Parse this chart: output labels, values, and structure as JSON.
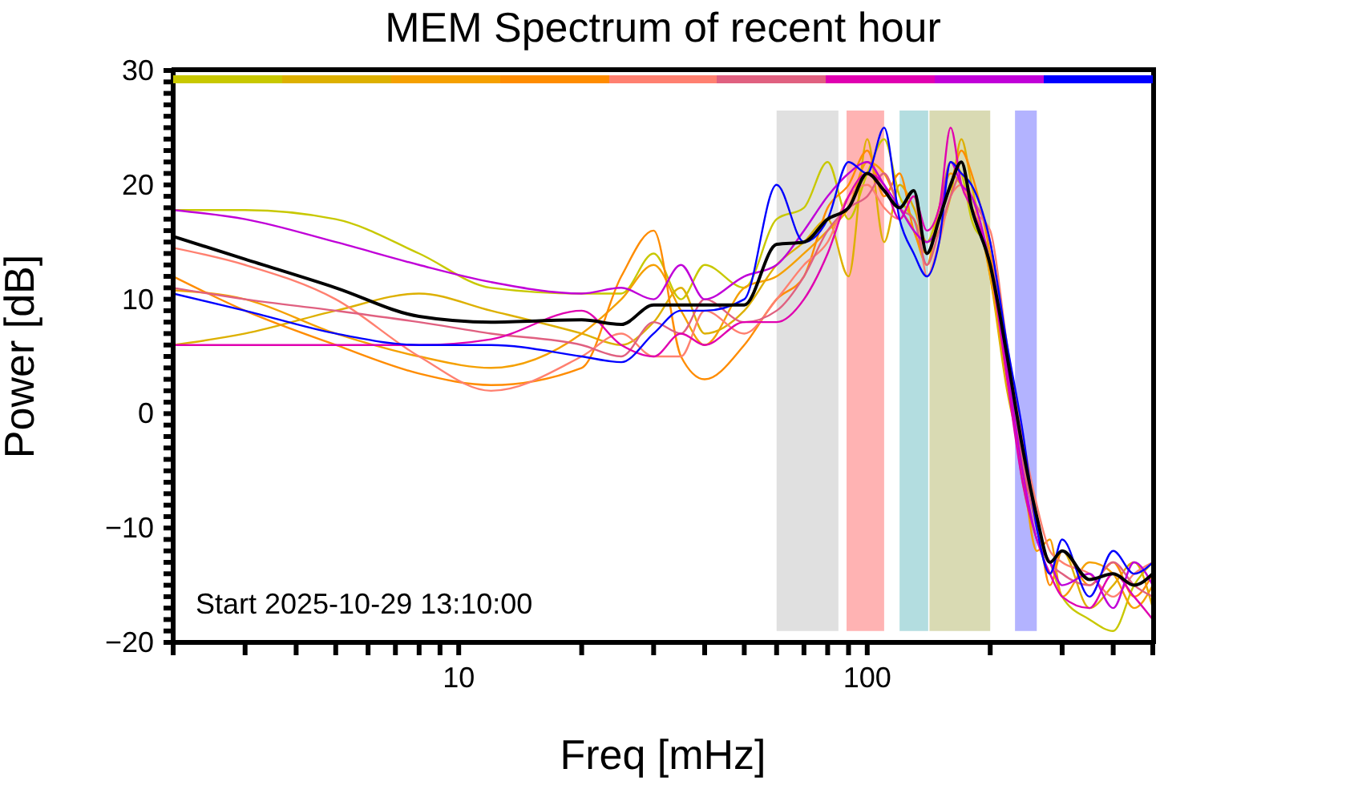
{
  "chart_data": {
    "type": "line",
    "title": "MEM Spectrum of recent hour",
    "xlabel": "Freq [mHz]",
    "ylabel": "Power [dB]",
    "log": "x",
    "grid": false,
    "legend": false,
    "marker": "none",
    "line_style": "solid",
    "xlim": [
      2,
      500
    ],
    "ylim": [
      -20,
      30
    ],
    "xticks": [
      {
        "value": 2,
        "label": null
      },
      {
        "value": 3,
        "label": null
      },
      {
        "value": 4,
        "label": null
      },
      {
        "value": 5,
        "label": null
      },
      {
        "value": 6,
        "label": null
      },
      {
        "value": 7,
        "label": null
      },
      {
        "value": 8,
        "label": null
      },
      {
        "value": 9,
        "label": null
      },
      10,
      {
        "value": 20,
        "label": null
      },
      {
        "value": 30,
        "label": null
      },
      {
        "value": 40,
        "label": null
      },
      {
        "value": 50,
        "label": null
      },
      {
        "value": 60,
        "label": null
      },
      {
        "value": 70,
        "label": null
      },
      {
        "value": 80,
        "label": null
      },
      {
        "value": 90,
        "label": null
      },
      100,
      {
        "value": 200,
        "label": null
      },
      {
        "value": 300,
        "label": null
      },
      {
        "value": 400,
        "label": null
      },
      {
        "value": 500,
        "label": null
      }
    ],
    "yticks": [
      -20,
      {
        "value": -19,
        "label": null
      },
      {
        "value": -18,
        "label": null
      },
      {
        "value": -17,
        "label": null
      },
      {
        "value": -16,
        "label": null
      },
      {
        "value": -15,
        "label": null
      },
      {
        "value": -14,
        "label": null
      },
      {
        "value": -13,
        "label": null
      },
      {
        "value": -12,
        "label": null
      },
      {
        "value": -11,
        "label": null
      },
      -10,
      {
        "value": -9,
        "label": null
      },
      {
        "value": -8,
        "label": null
      },
      {
        "value": -7,
        "label": null
      },
      {
        "value": -6,
        "label": null
      },
      {
        "value": -5,
        "label": null
      },
      {
        "value": -4,
        "label": null
      },
      {
        "value": -3,
        "label": null
      },
      {
        "value": -2,
        "label": null
      },
      {
        "value": -1,
        "label": null
      },
      0,
      {
        "value": 1,
        "label": null
      },
      {
        "value": 2,
        "label": null
      },
      {
        "value": 3,
        "label": null
      },
      {
        "value": 4,
        "label": null
      },
      {
        "value": 5,
        "label": null
      },
      {
        "value": 6,
        "label": null
      },
      {
        "value": 7,
        "label": null
      },
      {
        "value": 8,
        "label": null
      },
      {
        "value": 9,
        "label": null
      },
      10,
      {
        "value": 11,
        "label": null
      },
      {
        "value": 12,
        "label": null
      },
      {
        "value": 13,
        "label": null
      },
      {
        "value": 14,
        "label": null
      },
      {
        "value": 15,
        "label": null
      },
      {
        "value": 16,
        "label": null
      },
      {
        "value": 17,
        "label": null
      },
      {
        "value": 18,
        "label": null
      },
      {
        "value": 19,
        "label": null
      },
      20,
      {
        "value": 21,
        "label": null
      },
      {
        "value": 22,
        "label": null
      },
      {
        "value": 23,
        "label": null
      },
      {
        "value": 24,
        "label": null
      },
      {
        "value": 25,
        "label": null
      },
      {
        "value": 26,
        "label": null
      },
      {
        "value": 27,
        "label": null
      },
      {
        "value": 28,
        "label": null
      },
      {
        "value": 29,
        "label": null
      },
      30
    ],
    "x": [
      2,
      3,
      5,
      8,
      12,
      20,
      25,
      30,
      35,
      40,
      50,
      60,
      70,
      80,
      90,
      100,
      110,
      120,
      130,
      140,
      150,
      160,
      170,
      180,
      200,
      220,
      240,
      260,
      280,
      300,
      350,
      400,
      450,
      500
    ],
    "series": [
      {
        "color": "#c8c800",
        "values": [
          17.8,
          17.8,
          17,
          14,
          11,
          10.5,
          10.5,
          14,
          10,
          13,
          11,
          17,
          18,
          22,
          17,
          21,
          24,
          19,
          17,
          15,
          18,
          22,
          21,
          17,
          14,
          4,
          -6,
          -11,
          -13,
          -16,
          -18,
          -19,
          -15,
          -13
        ]
      },
      {
        "color": "#ddb000",
        "values": [
          6,
          7,
          9,
          10.5,
          9,
          7,
          6,
          8,
          11,
          7,
          9,
          13,
          15,
          17,
          12,
          24,
          15,
          20,
          18,
          15,
          16,
          19,
          24,
          20,
          12,
          2,
          -4,
          -10,
          -14,
          -12,
          -17,
          -15,
          -13,
          -17
        ]
      },
      {
        "color": "#f5a000",
        "values": [
          10.8,
          10,
          7,
          5,
          4,
          7,
          10,
          13,
          9,
          6,
          11,
          12,
          14,
          16,
          18,
          22,
          21,
          18,
          16,
          13,
          18,
          21,
          20,
          19,
          12,
          3,
          -5,
          -12,
          -11,
          -16,
          -13,
          -14,
          -17,
          -15
        ]
      },
      {
        "color": "#ff8c00",
        "values": [
          12,
          9,
          6,
          3.5,
          2.5,
          4,
          12,
          16,
          5,
          3,
          6,
          10,
          12,
          18,
          20,
          23,
          19,
          21,
          16,
          14,
          17,
          20,
          23,
          21,
          14,
          5,
          -5,
          -9,
          -15,
          -12,
          -15,
          -13,
          -16,
          -14
        ]
      },
      {
        "color": "#ff8070",
        "values": [
          14.5,
          13,
          10,
          5,
          2,
          5,
          7,
          5,
          5,
          9,
          7,
          10,
          13,
          15,
          19,
          20,
          18,
          17,
          19,
          12,
          15,
          19,
          20,
          18,
          16,
          6,
          -2,
          -8,
          -12,
          -13,
          -14,
          -16,
          -14,
          -13
        ]
      },
      {
        "color": "#e06080",
        "values": [
          11,
          10,
          9,
          8,
          7,
          6,
          5,
          8,
          7,
          10,
          8,
          9,
          12,
          16,
          18,
          19,
          21,
          18,
          17,
          13,
          16,
          19,
          21,
          19,
          15,
          4,
          -4,
          -10,
          -13,
          -14,
          -15,
          -13,
          -15,
          -16
        ]
      },
      {
        "color": "#e000b0",
        "values": [
          6,
          6,
          6,
          6,
          6.5,
          9,
          6,
          5,
          7,
          6,
          8,
          8,
          10,
          14,
          19,
          21,
          20,
          17,
          19,
          16,
          18,
          25,
          20,
          18,
          13,
          3,
          -6,
          -11,
          -14,
          -16,
          -17,
          -14,
          -16,
          -18
        ]
      },
      {
        "color": "#c000d8",
        "values": [
          17.8,
          17,
          15,
          13,
          11.5,
          10.5,
          11,
          10,
          13,
          10,
          12,
          13,
          16,
          19,
          21,
          22,
          20,
          18,
          16,
          15,
          17,
          22,
          20,
          19,
          13,
          4,
          -5,
          -11,
          -13,
          -15,
          -14,
          -17,
          -13,
          -15
        ]
      },
      {
        "color": "#0000ff",
        "values": [
          10.5,
          9,
          7,
          6,
          6,
          5,
          4.5,
          7,
          9,
          9,
          10,
          20,
          15,
          17,
          22,
          21,
          25,
          17,
          14,
          12,
          15,
          22,
          21,
          20,
          15,
          6,
          -1.5,
          -10,
          -14,
          -11,
          -16,
          -12,
          -14,
          -13
        ]
      },
      {
        "color": "#000000",
        "values": [
          15.5,
          13.5,
          11,
          8.5,
          8,
          8.2,
          7.8,
          9.5,
          9.5,
          9.5,
          9.5,
          14.8,
          15,
          17,
          18,
          21,
          19.5,
          18,
          19.5,
          14,
          17,
          20,
          22,
          18,
          13,
          5,
          -3,
          -9,
          -13,
          -12,
          -14.5,
          -14,
          -15,
          -14
        ]
      }
    ],
    "bands": [
      {
        "axis": "x",
        "from": 60,
        "to": 85,
        "color": "#e0e0e0"
      },
      {
        "axis": "x",
        "from": 89,
        "to": 110,
        "color": "#ffb3b3"
      },
      {
        "axis": "x",
        "from": 120,
        "to": 141,
        "color": "#b3dde0"
      },
      {
        "axis": "x",
        "from": 142,
        "to": 200,
        "color": "#d9dab3"
      },
      {
        "axis": "x",
        "from": 230,
        "to": 260,
        "color": "#b3b3ff"
      }
    ],
    "annotations": [
      "Start 2025-10-29 13:10:00"
    ]
  }
}
